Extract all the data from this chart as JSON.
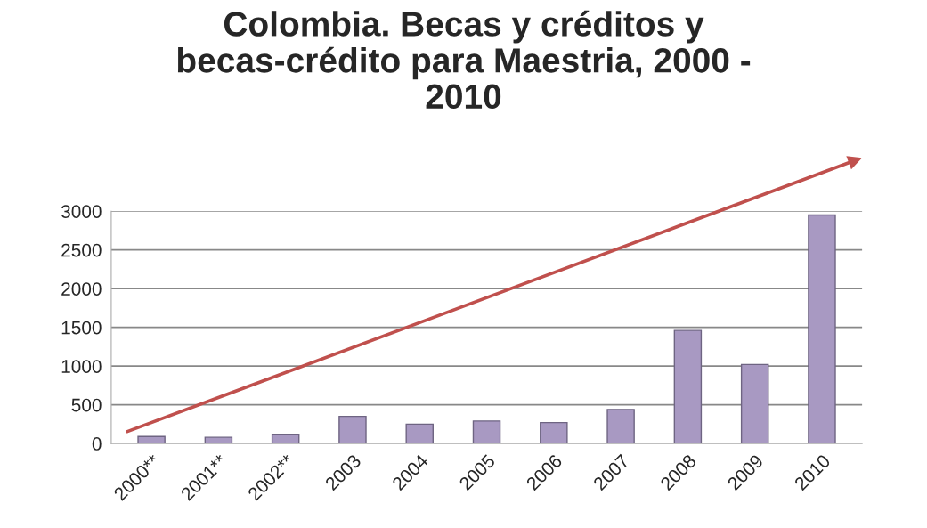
{
  "chart_data": {
    "type": "bar",
    "title": "Colombia. Becas y créditos y\nbecas-crédito para Maestria, 2000 -\n2010",
    "categories": [
      "2000**",
      "2001**",
      "2002**",
      "2003",
      "2004",
      "2005",
      "2006",
      "2007",
      "2008",
      "2009",
      "2010"
    ],
    "values": [
      90,
      80,
      120,
      350,
      250,
      290,
      270,
      440,
      1460,
      1020,
      2950
    ],
    "color": "#a899c2",
    "ylim": [
      0,
      3000
    ],
    "yticks": [
      0,
      500,
      1000,
      1500,
      2000,
      2500,
      3000
    ],
    "grid": "y"
  }
}
